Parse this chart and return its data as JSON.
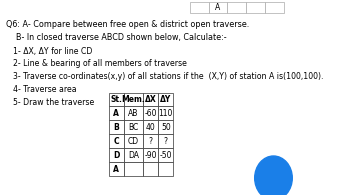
{
  "title_line1": "Q6: A- Compare between free open & district open traverse.",
  "title_line2": "    B- In closed traverse ABCD shown below, Calculate:-",
  "items": [
    "1- ΔX, ΔY for line CD",
    "2- Line & bearing of all members of traverse",
    "3- Traverse co-ordinates(x,y) of all stations if the  (X,Y) of station A is(100,100).",
    "4- Traverse area",
    "5- Draw the traverse"
  ],
  "table_headers": [
    "St.",
    "Mem.",
    "ΔX",
    "ΔY"
  ],
  "stations": [
    "A",
    "B",
    "C",
    "D",
    "A"
  ],
  "members": [
    "AB",
    "BC",
    "CD",
    "DA"
  ],
  "dx_vals": [
    "-60",
    "40",
    "?",
    "-90"
  ],
  "dy_vals": [
    "110",
    "50",
    "?",
    "-50"
  ],
  "bg_color": "#ffffff",
  "text_color": "#000000",
  "circle_color": "#1a7fe8",
  "font_size_main": 5.8,
  "font_size_table": 5.5
}
